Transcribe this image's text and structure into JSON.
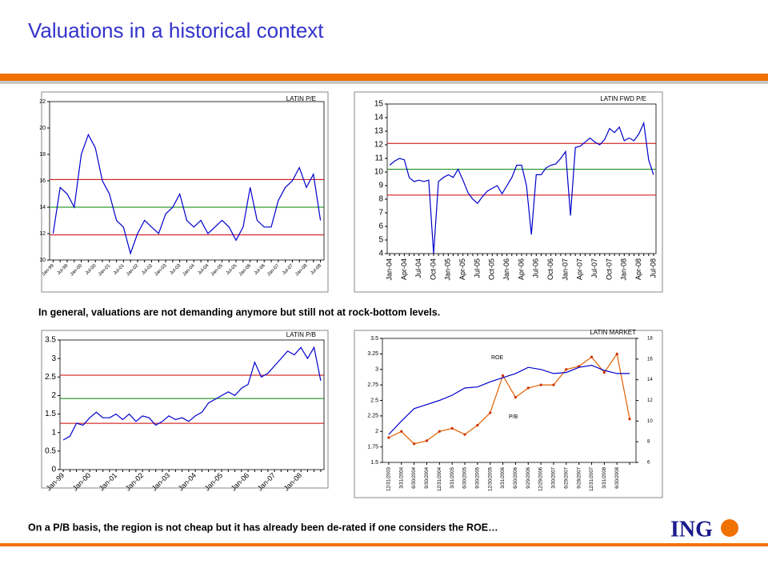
{
  "title": "Valuations in a historical context",
  "captions": [
    "In general, valuations are not demanding anymore but still not at rock-bottom levels.",
    "On a P/B basis, the region is not cheap but it has already been de-rated if one considers the ROE…"
  ],
  "logo": "ING",
  "chart_data": [
    {
      "type": "line",
      "title": "LATIN P/E",
      "categories": [
        "Jan-99",
        null,
        "Jul-99",
        null,
        "Jan-00",
        null,
        "Jul-00",
        null,
        "Jan-01",
        null,
        "Jul-01",
        null,
        "Jan-02",
        null,
        "Jul-02",
        null,
        "Jan-03",
        null,
        "Jul-03",
        null,
        "Jan-04",
        null,
        "Jul-04",
        null,
        "Jan-05",
        null,
        "Jul-05",
        null,
        "Jan-06",
        null,
        "Jul-06",
        null,
        "Jan-07",
        null,
        "Jul-07",
        null,
        "Jan-08",
        null,
        "Jul-08"
      ],
      "series": [
        {
          "name": "LATIN P/E",
          "color": "#0000cc",
          "values": [
            12,
            15.5,
            15,
            14,
            18,
            19.5,
            18.5,
            16,
            15,
            13,
            12.5,
            10.5,
            12,
            13,
            12.5,
            12,
            13.5,
            14,
            15,
            13,
            12.5,
            13,
            12,
            12.5,
            13,
            12.5,
            11.5,
            12.5,
            15.5,
            13,
            12.5,
            12.5,
            14.5,
            15.5,
            16,
            17,
            15.5,
            16.5,
            13
          ]
        }
      ],
      "reference_lines": [
        {
          "value": 16.1,
          "color": "#cc0000"
        },
        {
          "value": 14.0,
          "color": "#008000"
        },
        {
          "value": 11.9,
          "color": "#cc0000"
        }
      ],
      "ylim": [
        10,
        22
      ],
      "yticks": [
        10,
        12,
        14,
        16,
        18,
        20,
        22
      ]
    },
    {
      "type": "line",
      "title": "LATIN FWD P/E",
      "categories": [
        "Jan-04",
        null,
        null,
        "Apr-04",
        null,
        null,
        "Jul-04",
        null,
        null,
        "Oct-04",
        null,
        null,
        "Jan-05",
        null,
        null,
        "Apr-05",
        null,
        null,
        "Jul-05",
        null,
        null,
        "Oct-05",
        null,
        null,
        "Jan-06",
        null,
        null,
        "Apr-06",
        null,
        null,
        "Jul-06",
        null,
        null,
        "Oct-06",
        null,
        null,
        "Jan-07",
        null,
        null,
        "Apr-07",
        null,
        null,
        "Jul-07",
        null,
        null,
        "Oct-07",
        null,
        null,
        "Jan-08",
        null,
        null,
        "Apr-08",
        null,
        null,
        "Jul-08"
      ],
      "series": [
        {
          "name": "LATIN FWD P/E",
          "color": "#0000cc",
          "values": [
            10.5,
            10.8,
            11.0,
            10.9,
            9.6,
            9.3,
            9.4,
            9.3,
            9.4,
            4.0,
            9.3,
            9.6,
            9.8,
            9.6,
            10.2,
            9.4,
            8.5,
            8.0,
            7.7,
            8.2,
            8.6,
            8.8,
            9.0,
            8.4,
            9.0,
            9.6,
            10.5,
            10.5,
            9.0,
            5.4,
            9.8,
            9.8,
            10.3,
            10.5,
            10.6,
            11.0,
            11.5,
            6.8,
            11.8,
            11.9,
            12.2,
            12.5,
            12.2,
            12.0,
            12.4,
            13.2,
            12.9,
            13.3,
            12.3,
            12.5,
            12.3,
            12.8,
            13.6,
            10.9,
            9.8
          ]
        }
      ],
      "reference_lines": [
        {
          "value": 12.1,
          "color": "#cc0000"
        },
        {
          "value": 10.2,
          "color": "#008000"
        },
        {
          "value": 8.3,
          "color": "#cc0000"
        }
      ],
      "ylim": [
        4,
        15
      ],
      "yticks": [
        4,
        5,
        6,
        7,
        8,
        9,
        10,
        11,
        12,
        13,
        14,
        15
      ]
    },
    {
      "type": "line",
      "title": "LATIN P/B",
      "categories": [
        "Jan-99",
        null,
        null,
        null,
        "Jan-00",
        null,
        null,
        null,
        "Jan-01",
        null,
        null,
        null,
        "Jan-02",
        null,
        null,
        null,
        "Jan-03",
        null,
        null,
        null,
        "Jan-04",
        null,
        null,
        null,
        "Jan-05",
        null,
        null,
        null,
        "Jan-06",
        null,
        null,
        null,
        "Jan-07",
        null,
        null,
        null,
        "Jan-08",
        null,
        null,
        null
      ],
      "series": [
        {
          "name": "LATIN P/B",
          "color": "#0000cc",
          "values": [
            0.8,
            0.9,
            1.25,
            1.2,
            1.4,
            1.55,
            1.4,
            1.4,
            1.5,
            1.35,
            1.5,
            1.3,
            1.45,
            1.4,
            1.2,
            1.3,
            1.45,
            1.35,
            1.4,
            1.3,
            1.45,
            1.55,
            1.8,
            1.9,
            2.0,
            2.1,
            2.0,
            2.2,
            2.3,
            2.9,
            2.5,
            2.6,
            2.8,
            3.0,
            3.2,
            3.1,
            3.3,
            3.0,
            3.3,
            2.4
          ]
        }
      ],
      "reference_lines": [
        {
          "value": 2.55,
          "color": "#cc0000"
        },
        {
          "value": 1.92,
          "color": "#008000"
        },
        {
          "value": 1.25,
          "color": "#cc0000"
        }
      ],
      "ylim": [
        0,
        3.5
      ],
      "yticks": [
        0,
        0.5,
        1,
        1.5,
        2,
        2.5,
        3,
        3.5
      ]
    },
    {
      "type": "line",
      "title": "LATIN MARKET",
      "categories": [
        "12/31/2003",
        "3/31/2004",
        "6/30/2004",
        "9/30/2004",
        "12/31/2004",
        "3/31/2005",
        "6/30/2005",
        "9/30/2005",
        "12/30/2005",
        "3/31/2006",
        "6/30/2006",
        "9/29/2006",
        "12/29/2006",
        "3/30/2007",
        "6/29/2007",
        "9/28/2007",
        "12/31/2007",
        "3/31/2008",
        "6/30/2008",
        null
      ],
      "series": [
        {
          "name": "P/B",
          "color": "#e06000",
          "markers": true,
          "values": [
            1.9,
            2.0,
            1.8,
            1.85,
            2.0,
            2.05,
            1.95,
            2.1,
            2.3,
            2.9,
            2.55,
            2.7,
            2.75,
            2.75,
            3.0,
            3.05,
            3.2,
            2.95,
            3.25,
            2.2
          ]
        },
        {
          "name": "ROE",
          "color": "#0000cc",
          "axis": "y2",
          "values": [
            8.7,
            10.0,
            11.2,
            11.6,
            12.0,
            12.5,
            13.2,
            13.3,
            13.8,
            14.2,
            14.6,
            15.2,
            15.0,
            14.6,
            14.7,
            15.2,
            15.4,
            14.9,
            14.6,
            14.6
          ]
        }
      ],
      "annotations": [
        "ROE",
        "P/B"
      ],
      "ylim": [
        1.5,
        3.5
      ],
      "yticks": [
        1.5,
        1.75,
        2,
        2.25,
        2.5,
        2.75,
        3,
        3.25,
        3.5
      ],
      "y2lim": [
        6,
        18
      ],
      "y2ticks": [
        6,
        8,
        10,
        12,
        14,
        16,
        18
      ]
    }
  ]
}
